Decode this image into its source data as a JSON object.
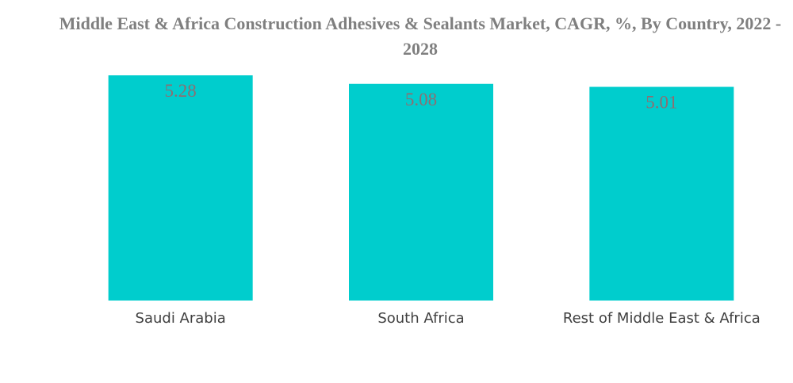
{
  "chart_data": {
    "type": "bar",
    "title": "Middle East & Africa Construction Adhesives & Sealants Market, CAGR, %, By Country, 2022 - 2028",
    "categories": [
      "Saudi Arabia",
      "South Africa",
      "Rest of Middle East & Africa"
    ],
    "values": [
      5.28,
      5.08,
      5.01
    ],
    "value_labels": [
      "5.28",
      "5.08",
      "5.01"
    ],
    "xlabel": "",
    "ylabel": "",
    "ylim": [
      0,
      5.28
    ],
    "grid": false,
    "legend": "none",
    "colors": {
      "bar": "#00cdcd",
      "data_label": "#8c6f72",
      "title": "#7f7f7f",
      "category_label": "#404040"
    }
  }
}
